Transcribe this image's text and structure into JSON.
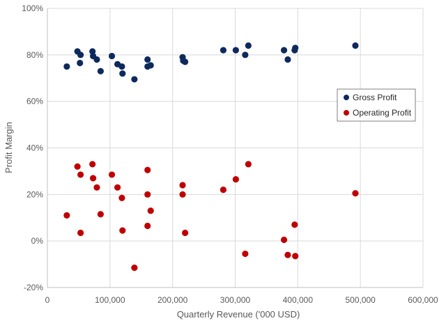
{
  "chart_data": {
    "type": "scatter",
    "title": "",
    "xlabel": "Quarterly Revenue ('000 USD)",
    "ylabel": "Profit Margin",
    "xlim": [
      0,
      600000
    ],
    "ylim": [
      -20,
      100
    ],
    "x_ticks": [
      0,
      100000,
      200000,
      300000,
      400000,
      500000,
      600000
    ],
    "x_tick_labels": [
      "0",
      "100,000",
      "200,000",
      "300,000",
      "400,000",
      "500,000",
      "600,000"
    ],
    "y_ticks": [
      -20,
      0,
      20,
      40,
      60,
      80,
      100
    ],
    "y_tick_labels": [
      "-20%",
      "0%",
      "20%",
      "40%",
      "60%",
      "80%",
      "100%"
    ],
    "grid": true,
    "legend_position": "right",
    "series": [
      {
        "name": "Gross Profit",
        "color": "#0e2a5c",
        "points": [
          [
            31000,
            75
          ],
          [
            48000,
            81.5
          ],
          [
            53000,
            80
          ],
          [
            52000,
            76.5
          ],
          [
            72000,
            81.5
          ],
          [
            73000,
            79.5
          ],
          [
            79000,
            78
          ],
          [
            85000,
            73
          ],
          [
            103000,
            79.5
          ],
          [
            112000,
            76
          ],
          [
            119000,
            75
          ],
          [
            120000,
            72
          ],
          [
            139000,
            69.5
          ],
          [
            160000,
            78
          ],
          [
            160000,
            75
          ],
          [
            165000,
            75.5
          ],
          [
            216000,
            79
          ],
          [
            217000,
            77.5
          ],
          [
            220000,
            77
          ],
          [
            281000,
            82
          ],
          [
            301000,
            82
          ],
          [
            316000,
            80
          ],
          [
            321000,
            84
          ],
          [
            378000,
            82
          ],
          [
            384000,
            78
          ],
          [
            395000,
            82
          ],
          [
            396000,
            83
          ],
          [
            492000,
            84
          ]
        ]
      },
      {
        "name": "Operating Profit",
        "color": "#c00000",
        "points": [
          [
            31000,
            11
          ],
          [
            48000,
            32
          ],
          [
            53000,
            28.5
          ],
          [
            53000,
            3.5
          ],
          [
            72000,
            33
          ],
          [
            73000,
            27
          ],
          [
            79000,
            23
          ],
          [
            85000,
            11.5
          ],
          [
            103000,
            28.5
          ],
          [
            112000,
            23
          ],
          [
            119000,
            18.5
          ],
          [
            120000,
            4.5
          ],
          [
            139000,
            -11.5
          ],
          [
            160000,
            30.5
          ],
          [
            160000,
            20
          ],
          [
            160000,
            6.5
          ],
          [
            165000,
            13
          ],
          [
            216000,
            24
          ],
          [
            216000,
            20
          ],
          [
            220000,
            3.5
          ],
          [
            281000,
            22
          ],
          [
            301000,
            26.5
          ],
          [
            316000,
            -5.5
          ],
          [
            321000,
            33
          ],
          [
            378000,
            0.5
          ],
          [
            384000,
            -6
          ],
          [
            395000,
            7
          ],
          [
            396000,
            -6.5
          ],
          [
            492000,
            20.5
          ]
        ]
      }
    ]
  }
}
